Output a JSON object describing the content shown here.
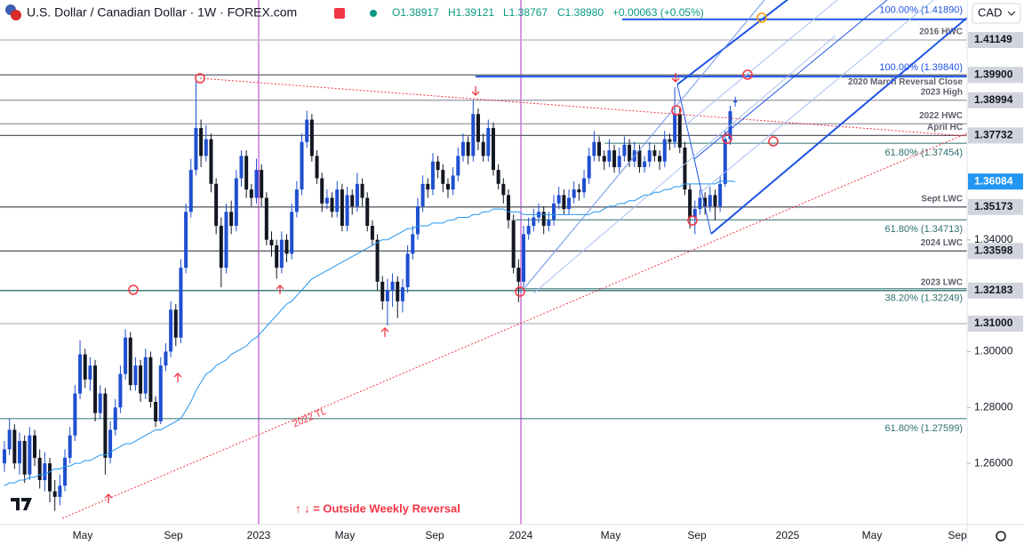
{
  "chart_data": {
    "type": "candlestick",
    "header": {
      "title": "U.S. Dollar / Canadian Dollar · 1W · FOREX.com",
      "ohlc_text": [
        "O1.38917",
        "H1.39121",
        "L1.38767",
        "C1.38980"
      ],
      "change": "+0.00063 (+0.05%)",
      "currency": "CAD"
    },
    "up_color": "#1f4fd0",
    "down_color": "#131722",
    "ylim": [
      1.2381,
      1.4258
    ],
    "yticks": [
      {
        "value": 1.26,
        "label": "1.26000"
      },
      {
        "value": 1.28,
        "label": "1.28000"
      },
      {
        "value": 1.3,
        "label": "1.30000"
      },
      {
        "value": 1.34,
        "label": "1.34000"
      }
    ],
    "grid": false,
    "x_labels": [
      "May",
      "Sep",
      "2023",
      "May",
      "Sep",
      "2024",
      "May",
      "Sep",
      "2025",
      "May",
      "Sep"
    ],
    "ohlc": [
      [
        1.26,
        1.268,
        1.257,
        1.265
      ],
      [
        1.265,
        1.276,
        1.263,
        1.272
      ],
      [
        1.272,
        1.274,
        1.258,
        1.26
      ],
      [
        1.26,
        1.271,
        1.256,
        1.268
      ],
      [
        1.268,
        1.27,
        1.253,
        1.256
      ],
      [
        1.256,
        1.273,
        1.254,
        1.27
      ],
      [
        1.27,
        1.272,
        1.259,
        1.262
      ],
      [
        1.262,
        1.265,
        1.251,
        1.254
      ],
      [
        1.254,
        1.264,
        1.25,
        1.26
      ],
      [
        1.26,
        1.262,
        1.246,
        1.25
      ],
      [
        1.25,
        1.254,
        1.243,
        1.248
      ],
      [
        1.248,
        1.256,
        1.245,
        1.252
      ],
      [
        1.252,
        1.265,
        1.25,
        1.262
      ],
      [
        1.262,
        1.273,
        1.26,
        1.27
      ],
      [
        1.27,
        1.288,
        1.268,
        1.285
      ],
      [
        1.285,
        1.304,
        1.283,
        1.299
      ],
      [
        1.299,
        1.301,
        1.287,
        1.29
      ],
      [
        1.29,
        1.298,
        1.286,
        1.295
      ],
      [
        1.295,
        1.297,
        1.275,
        1.278
      ],
      [
        1.278,
        1.288,
        1.276,
        1.285
      ],
      [
        1.285,
        1.287,
        1.256,
        1.262
      ],
      [
        1.262,
        1.275,
        1.26,
        1.272
      ],
      [
        1.272,
        1.283,
        1.27,
        1.28
      ],
      [
        1.28,
        1.295,
        1.278,
        1.292
      ],
      [
        1.292,
        1.308,
        1.29,
        1.305
      ],
      [
        1.305,
        1.307,
        1.286,
        1.288
      ],
      [
        1.288,
        1.298,
        1.286,
        1.295
      ],
      [
        1.295,
        1.297,
        1.282,
        1.285
      ],
      [
        1.285,
        1.301,
        1.283,
        1.298
      ],
      [
        1.298,
        1.3,
        1.28,
        1.282
      ],
      [
        1.282,
        1.284,
        1.273,
        1.275
      ],
      [
        1.275,
        1.298,
        1.274,
        1.295
      ],
      [
        1.295,
        1.303,
        1.293,
        1.3
      ],
      [
        1.3,
        1.318,
        1.298,
        1.315
      ],
      [
        1.315,
        1.317,
        1.302,
        1.305
      ],
      [
        1.305,
        1.333,
        1.303,
        1.33
      ],
      [
        1.33,
        1.353,
        1.328,
        1.35
      ],
      [
        1.35,
        1.369,
        1.348,
        1.365
      ],
      [
        1.365,
        1.3977,
        1.363,
        1.38
      ],
      [
        1.38,
        1.383,
        1.366,
        1.37
      ],
      [
        1.37,
        1.381,
        1.368,
        1.376
      ],
      [
        1.376,
        1.378,
        1.357,
        1.36
      ],
      [
        1.36,
        1.362,
        1.342,
        1.345
      ],
      [
        1.345,
        1.348,
        1.323,
        1.33
      ],
      [
        1.33,
        1.353,
        1.328,
        1.35
      ],
      [
        1.35,
        1.354,
        1.342,
        1.345
      ],
      [
        1.345,
        1.365,
        1.343,
        1.362
      ],
      [
        1.362,
        1.372,
        1.359,
        1.37
      ],
      [
        1.37,
        1.372,
        1.355,
        1.358
      ],
      [
        1.358,
        1.36,
        1.352,
        1.355
      ],
      [
        1.355,
        1.369,
        1.353,
        1.365
      ],
      [
        1.365,
        1.367,
        1.352,
        1.355
      ],
      [
        1.355,
        1.357,
        1.338,
        1.34
      ],
      [
        1.34,
        1.343,
        1.334,
        1.338
      ],
      [
        1.338,
        1.34,
        1.326,
        1.33
      ],
      [
        1.33,
        1.343,
        1.328,
        1.34
      ],
      [
        1.34,
        1.342,
        1.332,
        1.335
      ],
      [
        1.335,
        1.353,
        1.333,
        1.35
      ],
      [
        1.35,
        1.361,
        1.348,
        1.358
      ],
      [
        1.358,
        1.378,
        1.356,
        1.375
      ],
      [
        1.375,
        1.3862,
        1.373,
        1.383
      ],
      [
        1.383,
        1.385,
        1.368,
        1.37
      ],
      [
        1.37,
        1.372,
        1.36,
        1.362
      ],
      [
        1.362,
        1.364,
        1.35,
        1.353
      ],
      [
        1.353,
        1.358,
        1.351,
        1.355
      ],
      [
        1.355,
        1.357,
        1.348,
        1.35
      ],
      [
        1.35,
        1.361,
        1.348,
        1.358
      ],
      [
        1.358,
        1.36,
        1.343,
        1.345
      ],
      [
        1.345,
        1.359,
        1.343,
        1.356
      ],
      [
        1.356,
        1.358,
        1.349,
        1.352
      ],
      [
        1.352,
        1.364,
        1.35,
        1.36
      ],
      [
        1.36,
        1.362,
        1.352,
        1.355
      ],
      [
        1.355,
        1.357,
        1.343,
        1.345
      ],
      [
        1.345,
        1.347,
        1.338,
        1.34
      ],
      [
        1.34,
        1.342,
        1.322,
        1.325
      ],
      [
        1.325,
        1.327,
        1.315,
        1.318
      ],
      [
        1.318,
        1.326,
        1.3093,
        1.322
      ],
      [
        1.322,
        1.328,
        1.316,
        1.325
      ],
      [
        1.325,
        1.327,
        1.312,
        1.318
      ],
      [
        1.318,
        1.326,
        1.314,
        1.323
      ],
      [
        1.323,
        1.338,
        1.321,
        1.335
      ],
      [
        1.335,
        1.345,
        1.333,
        1.342
      ],
      [
        1.342,
        1.355,
        1.34,
        1.352
      ],
      [
        1.352,
        1.363,
        1.35,
        1.36
      ],
      [
        1.36,
        1.362,
        1.355,
        1.358
      ],
      [
        1.358,
        1.371,
        1.356,
        1.368
      ],
      [
        1.368,
        1.37,
        1.362,
        1.365
      ],
      [
        1.365,
        1.367,
        1.357,
        1.36
      ],
      [
        1.36,
        1.362,
        1.355,
        1.358
      ],
      [
        1.358,
        1.366,
        1.356,
        1.363
      ],
      [
        1.363,
        1.373,
        1.361,
        1.37
      ],
      [
        1.37,
        1.378,
        1.368,
        1.375
      ],
      [
        1.375,
        1.377,
        1.367,
        1.37
      ],
      [
        1.37,
        1.39,
        1.368,
        1.385
      ],
      [
        1.385,
        1.387,
        1.372,
        1.375
      ],
      [
        1.375,
        1.378,
        1.368,
        1.37
      ],
      [
        1.37,
        1.383,
        1.368,
        1.38
      ],
      [
        1.38,
        1.382,
        1.363,
        1.365
      ],
      [
        1.365,
        1.367,
        1.358,
        1.36
      ],
      [
        1.36,
        1.362,
        1.353,
        1.356
      ],
      [
        1.356,
        1.358,
        1.344,
        1.347
      ],
      [
        1.347,
        1.349,
        1.328,
        1.33
      ],
      [
        1.33,
        1.333,
        1.3177,
        1.325
      ],
      [
        1.325,
        1.345,
        1.323,
        1.342
      ],
      [
        1.342,
        1.348,
        1.34,
        1.345
      ],
      [
        1.345,
        1.351,
        1.343,
        1.348
      ],
      [
        1.348,
        1.353,
        1.346,
        1.35
      ],
      [
        1.35,
        1.352,
        1.342,
        1.345
      ],
      [
        1.345,
        1.35,
        1.343,
        1.347
      ],
      [
        1.347,
        1.356,
        1.345,
        1.353
      ],
      [
        1.353,
        1.359,
        1.351,
        1.356
      ],
      [
        1.356,
        1.358,
        1.349,
        1.351
      ],
      [
        1.351,
        1.358,
        1.349,
        1.355
      ],
      [
        1.355,
        1.361,
        1.353,
        1.358
      ],
      [
        1.358,
        1.36,
        1.354,
        1.357
      ],
      [
        1.357,
        1.365,
        1.355,
        1.362
      ],
      [
        1.362,
        1.373,
        1.36,
        1.37
      ],
      [
        1.37,
        1.379,
        1.368,
        1.375
      ],
      [
        1.375,
        1.377,
        1.368,
        1.37
      ],
      [
        1.37,
        1.372,
        1.365,
        1.368
      ],
      [
        1.368,
        1.376,
        1.366,
        1.372
      ],
      [
        1.372,
        1.374,
        1.364,
        1.366
      ],
      [
        1.366,
        1.373,
        1.364,
        1.37
      ],
      [
        1.37,
        1.377,
        1.368,
        1.374
      ],
      [
        1.374,
        1.376,
        1.366,
        1.368
      ],
      [
        1.368,
        1.375,
        1.366,
        1.372
      ],
      [
        1.372,
        1.374,
        1.364,
        1.366
      ],
      [
        1.366,
        1.37,
        1.364,
        1.368
      ],
      [
        1.368,
        1.375,
        1.366,
        1.372
      ],
      [
        1.372,
        1.374,
        1.368,
        1.37
      ],
      [
        1.37,
        1.372,
        1.365,
        1.368
      ],
      [
        1.368,
        1.379,
        1.366,
        1.376
      ],
      [
        1.376,
        1.378,
        1.372,
        1.375
      ],
      [
        1.375,
        1.3946,
        1.373,
        1.385
      ],
      [
        1.385,
        1.387,
        1.371,
        1.373
      ],
      [
        1.373,
        1.375,
        1.356,
        1.358
      ],
      [
        1.358,
        1.36,
        1.344,
        1.348
      ],
      [
        1.348,
        1.354,
        1.342,
        1.351
      ],
      [
        1.351,
        1.358,
        1.349,
        1.355
      ],
      [
        1.355,
        1.357,
        1.349,
        1.352
      ],
      [
        1.352,
        1.359,
        1.35,
        1.356
      ],
      [
        1.356,
        1.358,
        1.347,
        1.352
      ],
      [
        1.352,
        1.363,
        1.35,
        1.36
      ],
      [
        1.36,
        1.379,
        1.359,
        1.376
      ],
      [
        1.376,
        1.388,
        1.374,
        1.386
      ],
      [
        1.38917,
        1.39121,
        1.38767,
        1.3898
      ]
    ],
    "ma": {
      "color": "#2196f3",
      "last_label": "1.36084",
      "values": [
        1.252,
        1.253,
        1.253,
        1.254,
        1.254,
        1.255,
        1.255,
        1.256,
        1.256,
        1.257,
        1.258,
        1.258,
        1.259,
        1.259,
        1.26,
        1.26,
        1.261,
        1.261,
        1.262,
        1.263,
        1.263,
        1.264,
        1.265,
        1.266,
        1.267,
        1.267,
        1.268,
        1.269,
        1.27,
        1.271,
        1.272,
        1.272,
        1.273,
        1.274,
        1.275,
        1.276,
        1.279,
        1.282,
        1.286,
        1.289,
        1.292,
        1.293,
        1.295,
        1.296,
        1.297,
        1.299,
        1.3,
        1.301,
        1.302,
        1.304,
        1.305,
        1.307,
        1.309,
        1.311,
        1.313,
        1.315,
        1.317,
        1.318,
        1.32,
        1.322,
        1.324,
        1.326,
        1.327,
        1.328,
        1.329,
        1.33,
        1.331,
        1.332,
        1.333,
        1.334,
        1.335,
        1.336,
        1.337,
        1.338,
        1.339,
        1.34,
        1.34,
        1.341,
        1.342,
        1.343,
        1.344,
        1.344,
        1.345,
        1.345,
        1.345,
        1.346,
        1.346,
        1.346,
        1.347,
        1.347,
        1.348,
        1.348,
        1.348,
        1.349,
        1.349,
        1.35,
        1.35,
        1.351,
        1.351,
        1.351,
        1.35,
        1.35,
        1.35,
        1.349,
        1.349,
        1.349,
        1.349,
        1.349,
        1.349,
        1.349,
        1.349,
        1.349,
        1.349,
        1.349,
        1.349,
        1.349,
        1.349,
        1.35,
        1.35,
        1.351,
        1.352,
        1.352,
        1.353,
        1.353,
        1.354,
        1.354,
        1.355,
        1.356,
        1.356,
        1.357,
        1.357,
        1.358,
        1.358,
        1.359,
        1.359,
        1.36,
        1.36,
        1.36,
        1.36,
        1.36,
        1.36,
        1.36,
        1.361,
        1.361,
        1.361,
        1.36084
      ]
    },
    "levels": [
      {
        "value": 1.41149,
        "label": "1.41149",
        "note": "2016 HWC",
        "color": "#b2b5be"
      },
      {
        "value": 1.399,
        "label": "1.39900",
        "note": "2020 March Reversal Close",
        "color": "#5d606b"
      },
      {
        "value": 1.38994,
        "label": "1.38994",
        "note": "2023 High",
        "color": "#9598a1"
      },
      {
        "value": 1.3815,
        "note": "2022 HWC",
        "color": "#9598a1"
      },
      {
        "value": 1.37732,
        "label": "1.37732",
        "note": "April HC",
        "color": "#5d606b"
      },
      {
        "value": 1.35173,
        "label": "1.35173",
        "note": "Sept LWC",
        "color": "#5d606b"
      },
      {
        "value": 1.33598,
        "label": "1.33598",
        "note": "2024 LWC",
        "color": "#5d606b"
      },
      {
        "value": 1.32183,
        "label": "1.32183",
        "note": "2023 LWC",
        "color": "#2f6f6f"
      },
      {
        "value": 1.31,
        "label": "1.31000",
        "color": "#b2b5be"
      }
    ],
    "fib_levels": [
      {
        "value": 1.4189,
        "label": "100.00% (1.41890)",
        "color": "#1e53e5"
      },
      {
        "value": 1.3984,
        "label": "100.00% (1.39840)",
        "color": "#1e53e5"
      },
      {
        "value": 1.37454,
        "label": "61.80% (1.37454)",
        "color": "#2f6f6f"
      },
      {
        "value": 1.34713,
        "label": "61.80% (1.34713)",
        "color": "#2f6f6f"
      },
      {
        "value": 1.32249,
        "label": "38.20% (1.32249)",
        "color": "#2f6f6f"
      },
      {
        "value": 1.27599,
        "label": "61.80% (1.27599)",
        "color": "#2f6f6f"
      }
    ],
    "trendline_label": "2022 TL",
    "legend": "↑ ↓ = Outside Weekly Reversal"
  }
}
